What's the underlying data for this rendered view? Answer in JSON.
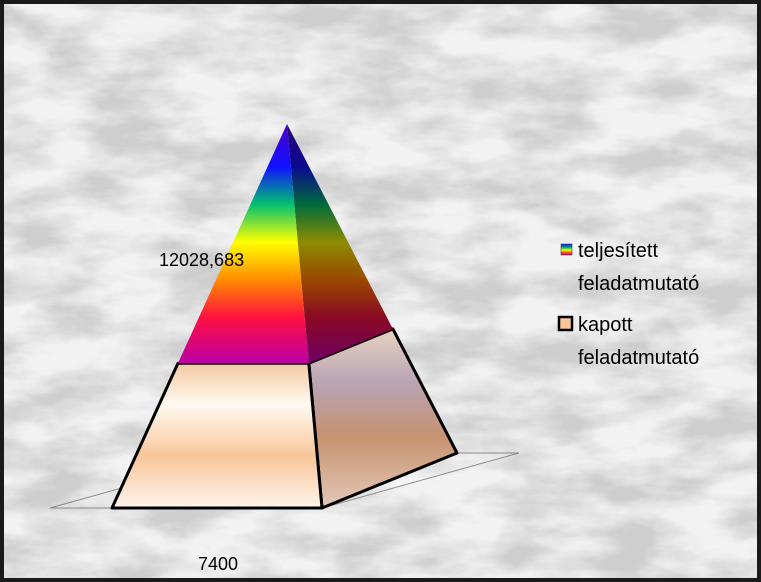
{
  "chart_data": {
    "type": "pyramid",
    "title": "",
    "series": [
      {
        "name": "teljesített feladatmutató",
        "value": 12028.683,
        "label": "12028,683"
      },
      {
        "name": "kapott feladatmutató",
        "value": 7400,
        "label": "7400"
      }
    ],
    "legend": {
      "placement": "right",
      "items": [
        {
          "line1": "teljesített",
          "line2": "feladatmutató",
          "swatch": "rainbow"
        },
        {
          "line1": "kapott",
          "line2": "feladatmutató",
          "swatch": "#f6c79c"
        }
      ]
    },
    "colors": {
      "kapott_fill": "#f6c79c",
      "outline": "#000000"
    }
  }
}
